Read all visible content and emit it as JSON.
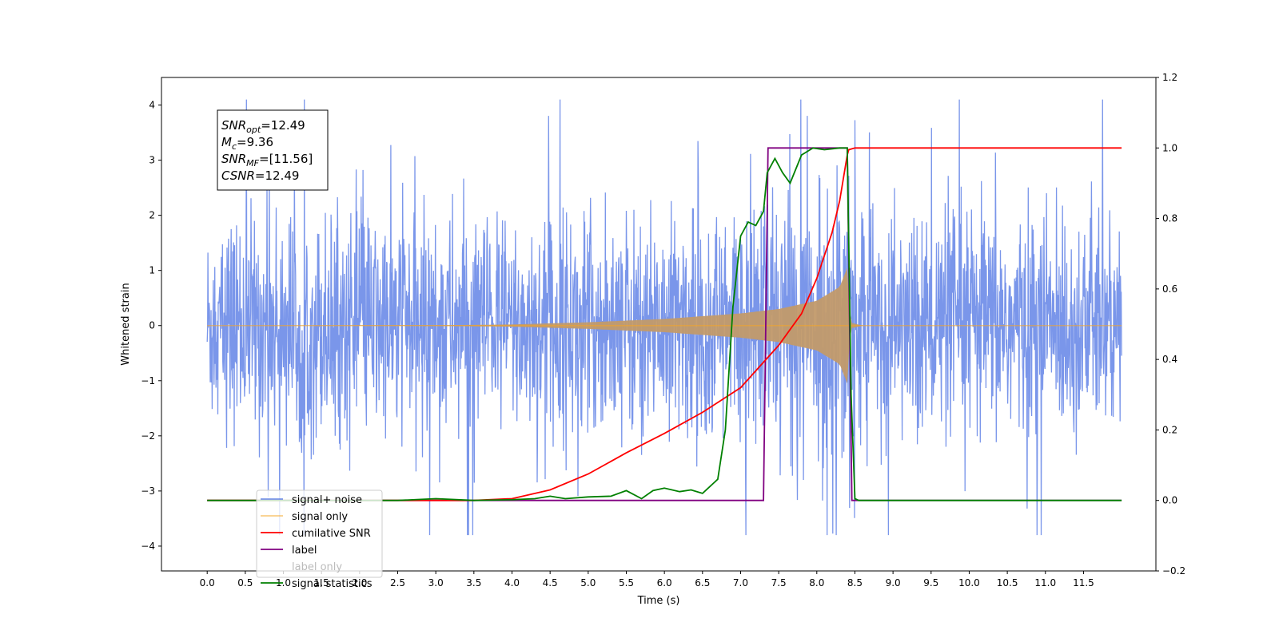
{
  "chart_data": {
    "type": "line",
    "title": "",
    "xlabel": "Time (s)",
    "ylabel": "Whitened strain",
    "y2label": "",
    "xlim": [
      -0.6,
      12.45
    ],
    "ylim": [
      -4.45,
      4.5
    ],
    "y2lim": [
      -0.2,
      1.2
    ],
    "xticks": [
      0.0,
      0.5,
      1.0,
      1.5,
      2.0,
      2.5,
      3.0,
      3.5,
      4.0,
      4.5,
      5.0,
      5.5,
      6.0,
      6.5,
      7.0,
      7.5,
      8.0,
      8.5,
      9.0,
      9.5,
      10.0,
      10.5,
      11.0,
      11.5
    ],
    "xtick_labels": [
      "0.0",
      "0.5",
      "1.0",
      "1.5",
      "2.0",
      "2.5",
      "3.0",
      "3.5",
      "4.0",
      "4.5",
      "5.0",
      "5.5",
      "6.0",
      "6.5",
      "7.0",
      "7.5",
      "8.0",
      "8.5",
      "9.0",
      "9.5",
      "10.0",
      "10.5",
      "11.0",
      "11.5"
    ],
    "yticks": [
      -4,
      -3,
      -2,
      -1,
      0,
      1,
      2,
      3,
      4
    ],
    "ytick_labels": [
      "−4",
      "−3",
      "−2",
      "−1",
      "0",
      "1",
      "2",
      "3",
      "4"
    ],
    "y2ticks": [
      -0.2,
      0.0,
      0.2,
      0.4,
      0.6,
      0.8,
      1.0,
      1.2
    ],
    "y2tick_labels": [
      "−0.2",
      "0.0",
      "0.2",
      "0.4",
      "0.6",
      "0.8",
      "1.0",
      "1.2"
    ],
    "grid": false,
    "legend_position": "lower-left",
    "annotation": {
      "lines": [
        {
          "label": "SNR",
          "sub": "opt",
          "value": "=12.49"
        },
        {
          "label": "M",
          "sub": "c",
          "value": "=9.36"
        },
        {
          "label": "SNR",
          "sub": "MF",
          "value": "=[11.56]"
        },
        {
          "label": "CSNR",
          "sub": "",
          "value": "=12.49"
        }
      ]
    },
    "series": [
      {
        "name": "signal+ noise",
        "axis": "left",
        "color": "#4169e1",
        "opacity": 0.7,
        "description_range": [
          -3.8,
          4.1
        ],
        "x": [
          0.0,
          1.0,
          2.0,
          3.0,
          4.0,
          5.0,
          6.0,
          7.0,
          8.0,
          8.4,
          9.0,
          10.0,
          11.0,
          12.0
        ],
        "upper": [
          1.9,
          2.0,
          2.0,
          2.0,
          2.0,
          2.0,
          2.0,
          2.2,
          2.4,
          2.7,
          2.0,
          2.0,
          2.0,
          2.0
        ],
        "lower": [
          -1.9,
          -2.0,
          -2.0,
          -2.0,
          -2.0,
          -2.0,
          -2.0,
          -2.2,
          -2.4,
          -2.7,
          -2.0,
          -2.0,
          -2.0,
          -2.0
        ]
      },
      {
        "name": "signal only",
        "axis": "left",
        "color": "#f5a623",
        "opacity": 0.55,
        "envelope": {
          "x": [
            0.0,
            3.0,
            4.0,
            5.0,
            6.0,
            7.0,
            7.5,
            8.0,
            8.3,
            8.4,
            8.42,
            8.45,
            8.6,
            12.0
          ],
          "amp": [
            0.0,
            0.005,
            0.02,
            0.06,
            0.12,
            0.22,
            0.3,
            0.45,
            0.7,
            1.05,
            0.4,
            0.05,
            0.0,
            0.0
          ]
        }
      },
      {
        "name": "cumilative SNR",
        "axis": "right",
        "color": "#ff0000",
        "x": [
          0.0,
          3.5,
          4.0,
          4.5,
          5.0,
          5.5,
          6.0,
          6.5,
          7.0,
          7.5,
          7.8,
          8.0,
          8.2,
          8.3,
          8.4,
          8.42,
          8.5,
          12.0
        ],
        "y": [
          0.0,
          0.0,
          0.005,
          0.03,
          0.075,
          0.135,
          0.19,
          0.25,
          0.32,
          0.44,
          0.53,
          0.63,
          0.76,
          0.85,
          0.98,
          0.995,
          1.0,
          1.0
        ]
      },
      {
        "name": "label",
        "axis": "right",
        "color": "#800080",
        "x": [
          0.0,
          7.3,
          7.36,
          8.4,
          8.46,
          12.0
        ],
        "y": [
          0.0,
          0.0,
          1.0,
          1.0,
          0.0,
          0.0
        ]
      },
      {
        "name": "label only",
        "legend_only": true,
        "color": "#00ffff"
      },
      {
        "name": "signal statistics",
        "axis": "right",
        "color": "#008000",
        "x": [
          0.0,
          2.5,
          3.0,
          3.5,
          4.0,
          4.3,
          4.5,
          4.7,
          5.0,
          5.3,
          5.5,
          5.7,
          5.85,
          6.0,
          6.2,
          6.35,
          6.5,
          6.7,
          6.8,
          6.9,
          7.0,
          7.1,
          7.2,
          7.3,
          7.35,
          7.45,
          7.55,
          7.65,
          7.8,
          7.95,
          8.1,
          8.3,
          8.4,
          8.45,
          8.5,
          8.55,
          12.0
        ],
        "y": [
          0.0,
          0.0,
          0.005,
          0.0,
          0.002,
          0.005,
          0.012,
          0.005,
          0.01,
          0.012,
          0.028,
          0.005,
          0.028,
          0.035,
          0.025,
          0.03,
          0.02,
          0.06,
          0.2,
          0.55,
          0.75,
          0.79,
          0.78,
          0.82,
          0.93,
          0.97,
          0.93,
          0.9,
          0.98,
          1.0,
          0.995,
          1.0,
          1.0,
          0.3,
          0.005,
          0.0,
          0.0
        ]
      }
    ]
  }
}
